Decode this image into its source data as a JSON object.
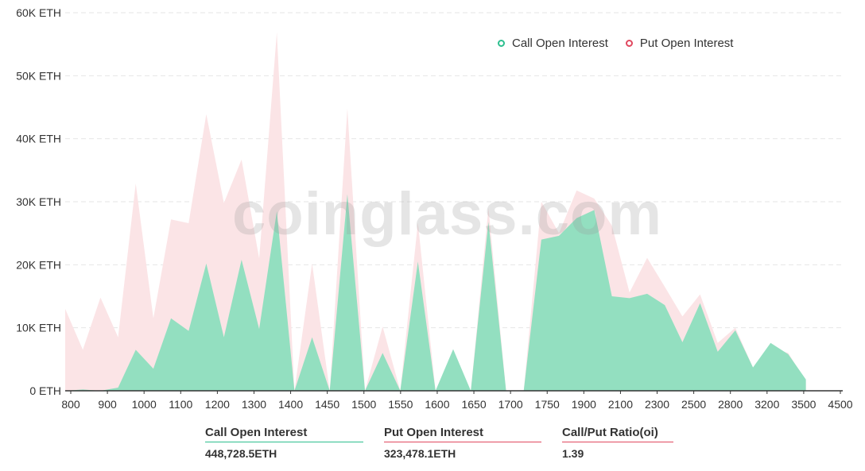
{
  "chart_data": {
    "type": "area",
    "title": "",
    "xlabel": "",
    "ylabel": "",
    "ylim": [
      0,
      60000
    ],
    "y_ticks": [
      0,
      10000,
      20000,
      30000,
      40000,
      50000,
      60000
    ],
    "y_tick_labels": [
      "0 ETH",
      "10K ETH",
      "20K ETH",
      "30K ETH",
      "40K ETH",
      "50K ETH",
      "60K ETH"
    ],
    "x_tick_labels": [
      "800",
      "900",
      "1000",
      "1100",
      "1200",
      "1300",
      "1400",
      "1450",
      "1500",
      "1550",
      "1600",
      "1650",
      "1700",
      "1750",
      "1900",
      "2100",
      "2300",
      "2500",
      "2800",
      "3200",
      "3500",
      "4500"
    ],
    "grid": "horizontal dashed",
    "legend_position": "top-right",
    "x": [
      "800",
      "850",
      "900",
      "950",
      "1000",
      "1050",
      "1100",
      "1150",
      "1200",
      "1250",
      "1300",
      "1350",
      "1400",
      "1425",
      "1450",
      "1475",
      "1500",
      "1525",
      "1550",
      "1575",
      "1600",
      "1625",
      "1650",
      "1675",
      "1700",
      "1725",
      "1750",
      "1800",
      "1850",
      "1900",
      "1950",
      "2000",
      "2100",
      "2200",
      "2300",
      "2400",
      "2500",
      "2600",
      "2800",
      "3000",
      "3200",
      "3400",
      "3500",
      "4000",
      "4500"
    ],
    "series": [
      {
        "name": "Call Open Interest",
        "color": "#93dfc0",
        "values": [
          0,
          200,
          0,
          500,
          6500,
          3500,
          11500,
          9500,
          20200,
          8500,
          20800,
          9800,
          28500,
          0,
          8500,
          0,
          31200,
          0,
          6000,
          0,
          20500,
          0,
          6600,
          0,
          26800,
          0,
          0,
          24000,
          24600,
          27400,
          28700,
          15000,
          14700,
          15400,
          13600,
          7700,
          13900,
          6200,
          9600,
          3700,
          7600,
          5800,
          1800,
          null,
          null
        ]
      },
      {
        "name": "Put  Open Interest",
        "color": "#fbe4e6",
        "values": [
          13000,
          6500,
          14800,
          8500,
          32900,
          11500,
          27200,
          26600,
          43900,
          29800,
          36700,
          21000,
          56900,
          0,
          20200,
          0,
          44800,
          0,
          10200,
          0,
          26700,
          0,
          3500,
          0,
          29000,
          0,
          0,
          30000,
          25000,
          31800,
          30500,
          26200,
          15600,
          21100,
          16500,
          11800,
          15300,
          7600,
          10000,
          3700,
          6800,
          6000,
          1500,
          null,
          null
        ]
      }
    ],
    "summary": [
      {
        "label": "Call Open Interest",
        "value": "448,728.5ETH",
        "color": "#2dbf8f"
      },
      {
        "label": "Put Open Interest",
        "value": "323,478.1ETH",
        "color": "#e0485f"
      },
      {
        "label": "Call/Put Ratio(oi)",
        "value": "1.39",
        "color": "#e0485f"
      }
    ]
  },
  "legend": {
    "call_label": "Call Open Interest",
    "put_label": "Put  Open Interest",
    "call_color": "#2dbf8f",
    "put_color": "#e0485f"
  },
  "watermark": "coinglass.com"
}
